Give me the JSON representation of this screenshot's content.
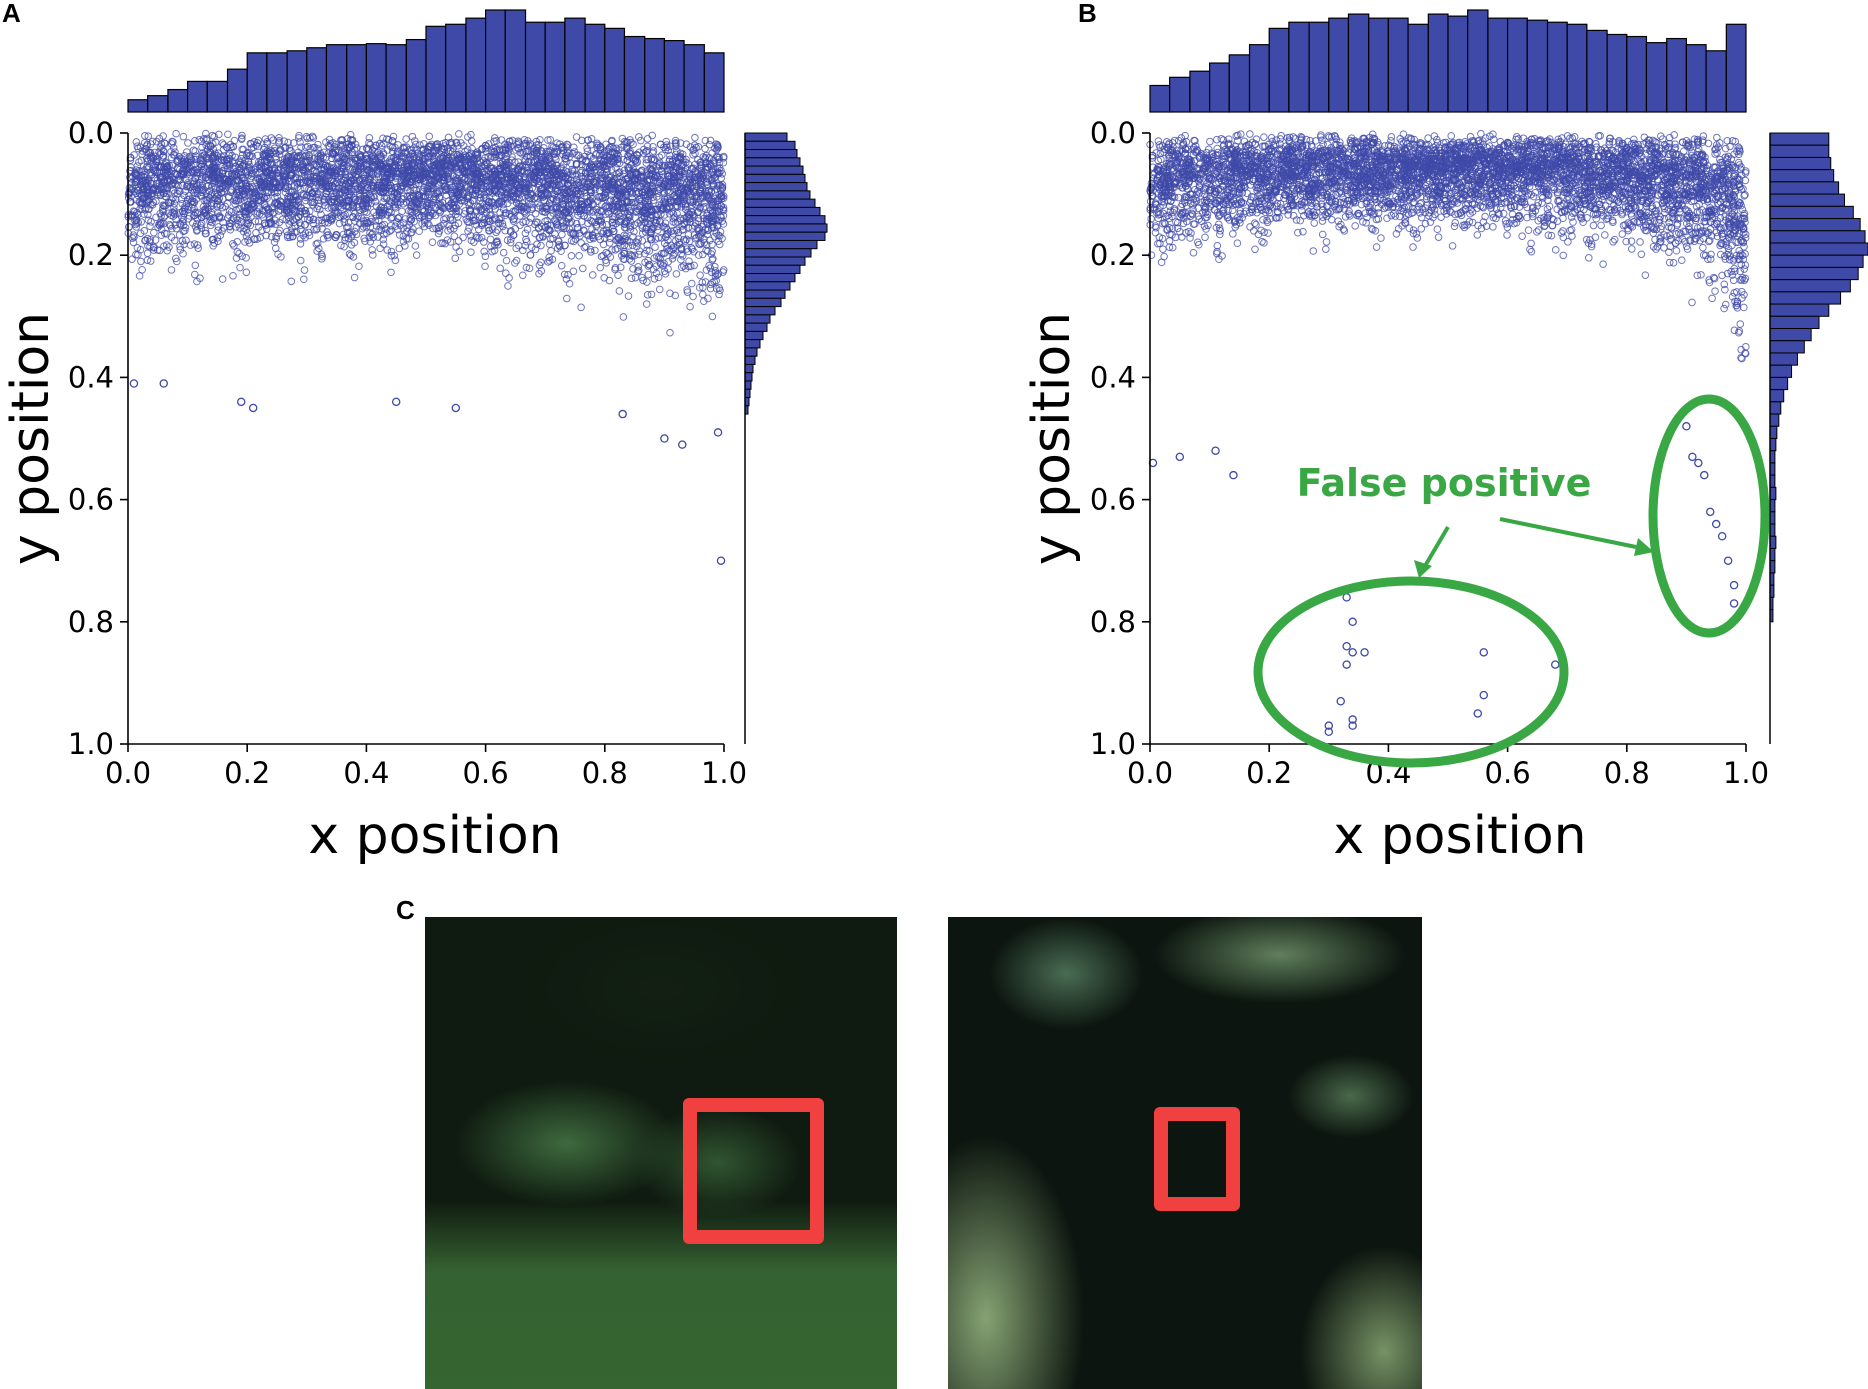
{
  "panels": {
    "a_label": "A",
    "b_label": "B",
    "c_label": "C"
  },
  "annotation": {
    "text": "False positive",
    "color": "#39a744"
  },
  "colors": {
    "points": "#3f4aa8",
    "bars": "#3f4aa8",
    "highlight_box": "#f04040"
  },
  "chart_data": [
    {
      "type": "scatter",
      "panel": "A",
      "xlabel": "x position",
      "ylabel": "y position",
      "xlim": [
        0.0,
        1.0
      ],
      "ylim": [
        1.0,
        0.0
      ],
      "y_inverted": true,
      "xticks": [
        "0.0",
        "0.2",
        "0.4",
        "0.6",
        "0.8",
        "1.0"
      ],
      "yticks": [
        "0.0",
        "0.2",
        "0.4",
        "0.6",
        "0.8",
        "1.0"
      ],
      "marker": "open-circle",
      "grid": false,
      "point_cloud": {
        "description_density": "dense band",
        "y_top": [
          [
            0.0,
            0.0
          ],
          [
            1.0,
            0.0
          ]
        ],
        "y_bottom_profile": [
          [
            0.0,
            0.36
          ],
          [
            0.2,
            0.35
          ],
          [
            0.4,
            0.33
          ],
          [
            0.5,
            0.3
          ],
          [
            0.6,
            0.34
          ],
          [
            0.8,
            0.4
          ],
          [
            0.9,
            0.44
          ],
          [
            1.0,
            0.48
          ]
        ],
        "outliers": [
          [
            0.01,
            0.41
          ],
          [
            0.06,
            0.41
          ],
          [
            0.19,
            0.44
          ],
          [
            0.21,
            0.45
          ],
          [
            0.45,
            0.44
          ],
          [
            0.55,
            0.45
          ],
          [
            0.83,
            0.46
          ],
          [
            0.9,
            0.5
          ],
          [
            0.93,
            0.51
          ],
          [
            0.99,
            0.49
          ],
          [
            0.995,
            0.7
          ]
        ]
      },
      "x_histogram": {
        "bin_edges": [
          0.0,
          0.033,
          0.067,
          0.1,
          0.133,
          0.167,
          0.2,
          0.233,
          0.267,
          0.3,
          0.333,
          0.367,
          0.4,
          0.433,
          0.467,
          0.5,
          0.533,
          0.567,
          0.6,
          0.633,
          0.667,
          0.7,
          0.733,
          0.767,
          0.8,
          0.833,
          0.867,
          0.9,
          0.933,
          0.967,
          1.0
        ],
        "heights": [
          0.12,
          0.16,
          0.22,
          0.3,
          0.3,
          0.42,
          0.58,
          0.58,
          0.6,
          0.63,
          0.66,
          0.66,
          0.67,
          0.66,
          0.71,
          0.84,
          0.86,
          0.92,
          1.0,
          1.0,
          0.88,
          0.88,
          0.92,
          0.86,
          0.82,
          0.74,
          0.72,
          0.7,
          0.66,
          0.58
        ]
      },
      "y_histogram": {
        "bin_count": 34,
        "range": [
          0.0,
          0.46
        ],
        "heights": [
          0.42,
          0.5,
          0.52,
          0.55,
          0.58,
          0.6,
          0.62,
          0.65,
          0.7,
          0.75,
          0.8,
          0.82,
          0.8,
          0.72,
          0.66,
          0.6,
          0.55,
          0.5,
          0.45,
          0.4,
          0.36,
          0.3,
          0.25,
          0.22,
          0.18,
          0.15,
          0.12,
          0.1,
          0.08,
          0.07,
          0.06,
          0.05,
          0.04,
          0.03
        ]
      }
    },
    {
      "type": "scatter",
      "panel": "B",
      "xlabel": "x position",
      "ylabel": "y position",
      "xlim": [
        0.0,
        1.0
      ],
      "ylim": [
        1.0,
        0.0
      ],
      "y_inverted": true,
      "xticks": [
        "0.0",
        "0.2",
        "0.4",
        "0.6",
        "0.8",
        "1.0"
      ],
      "yticks": [
        "0.0",
        "0.2",
        "0.4",
        "0.6",
        "0.8",
        "1.0"
      ],
      "marker": "open-circle",
      "grid": false,
      "point_cloud": {
        "description_density": "dense band",
        "y_top": [
          [
            0.0,
            0.0
          ],
          [
            1.0,
            0.0
          ]
        ],
        "y_bottom_profile": [
          [
            0.0,
            0.33
          ],
          [
            0.2,
            0.28
          ],
          [
            0.4,
            0.26
          ],
          [
            0.6,
            0.26
          ],
          [
            0.8,
            0.3
          ],
          [
            0.9,
            0.36
          ],
          [
            0.98,
            0.5
          ],
          [
            1.0,
            0.78
          ]
        ],
        "outliers": [
          [
            0.005,
            0.54
          ],
          [
            0.05,
            0.53
          ],
          [
            0.11,
            0.52
          ],
          [
            0.14,
            0.56
          ],
          [
            0.33,
            0.76
          ],
          [
            0.34,
            0.8
          ],
          [
            0.33,
            0.84
          ],
          [
            0.34,
            0.85
          ],
          [
            0.36,
            0.85
          ],
          [
            0.33,
            0.87
          ],
          [
            0.32,
            0.93
          ],
          [
            0.3,
            0.97
          ],
          [
            0.34,
            0.96
          ],
          [
            0.34,
            0.97
          ],
          [
            0.3,
            0.98
          ],
          [
            0.56,
            0.85
          ],
          [
            0.56,
            0.92
          ],
          [
            0.55,
            0.95
          ],
          [
            0.68,
            0.87
          ],
          [
            0.9,
            0.48
          ],
          [
            0.91,
            0.53
          ],
          [
            0.92,
            0.54
          ],
          [
            0.93,
            0.56
          ],
          [
            0.94,
            0.62
          ],
          [
            0.95,
            0.64
          ],
          [
            0.96,
            0.66
          ],
          [
            0.97,
            0.7
          ],
          [
            0.98,
            0.74
          ],
          [
            0.98,
            0.77
          ]
        ]
      },
      "x_histogram": {
        "bin_edges": [
          0.0,
          0.033,
          0.067,
          0.1,
          0.133,
          0.167,
          0.2,
          0.233,
          0.267,
          0.3,
          0.333,
          0.367,
          0.4,
          0.433,
          0.467,
          0.5,
          0.533,
          0.567,
          0.6,
          0.633,
          0.667,
          0.7,
          0.733,
          0.767,
          0.8,
          0.833,
          0.867,
          0.9,
          0.933,
          0.967,
          1.0
        ],
        "heights": [
          0.26,
          0.34,
          0.4,
          0.48,
          0.56,
          0.66,
          0.82,
          0.88,
          0.88,
          0.92,
          0.96,
          0.92,
          0.92,
          0.86,
          0.96,
          0.94,
          1.0,
          0.92,
          0.92,
          0.9,
          0.88,
          0.86,
          0.8,
          0.76,
          0.74,
          0.68,
          0.72,
          0.66,
          0.6,
          0.86
        ]
      },
      "y_histogram": {
        "bin_count": 40,
        "range": [
          0.0,
          0.8
        ],
        "heights": [
          0.6,
          0.6,
          0.62,
          0.65,
          0.7,
          0.76,
          0.85,
          0.92,
          0.97,
          1.0,
          0.95,
          0.9,
          0.82,
          0.72,
          0.6,
          0.5,
          0.42,
          0.35,
          0.28,
          0.22,
          0.18,
          0.14,
          0.11,
          0.09,
          0.07,
          0.06,
          0.05,
          0.05,
          0.05,
          0.06,
          0.05,
          0.05,
          0.05,
          0.06,
          0.05,
          0.05,
          0.04,
          0.04,
          0.03,
          0.03
        ]
      }
    }
  ]
}
